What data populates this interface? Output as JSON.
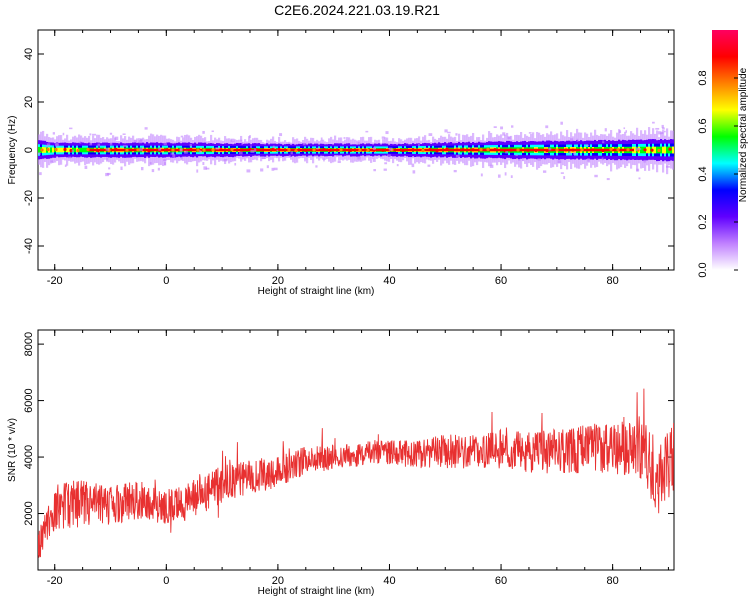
{
  "title": "C2E6.2024.221.03.19.R21",
  "chart_data": [
    {
      "type": "heatmap",
      "xlabel": "Height of straight line (km)",
      "ylabel": "Frequency (Hz)",
      "xlim": [
        -23,
        91
      ],
      "ylim": [
        -50,
        50
      ],
      "x_ticks": [
        -20,
        0,
        20,
        40,
        60,
        80
      ],
      "y_ticks": [
        -40,
        -20,
        0,
        20,
        40
      ],
      "x_tick_labels": [
        "-20",
        "0",
        "20",
        "40",
        "60",
        "80"
      ],
      "y_tick_labels": [
        "-40",
        "-20",
        "0",
        "20",
        "40"
      ],
      "center_frequency": 0,
      "band_halfwidth_hz": [
        [
          -23,
          4
        ],
        [
          -20,
          3
        ],
        [
          0,
          3
        ],
        [
          20,
          2.5
        ],
        [
          40,
          2.5
        ],
        [
          50,
          3
        ],
        [
          60,
          3.5
        ],
        [
          80,
          4
        ],
        [
          91,
          4.5
        ]
      ],
      "grid": false,
      "colorbar": {
        "label": "Normalized spectral amplitude",
        "range": [
          0,
          1
        ],
        "ticks": [
          0.0,
          0.2,
          0.4,
          0.6,
          0.8
        ],
        "tick_labels": [
          "0.0",
          "0.2",
          "0.4",
          "0.6",
          "0.8"
        ],
        "colors": [
          "#ffffff",
          "#c080ff",
          "#6000ff",
          "#0000ff",
          "#00ffff",
          "#00ff00",
          "#ffff00",
          "#ff8000",
          "#ff0000",
          "#ff0060"
        ]
      }
    },
    {
      "type": "line",
      "xlabel": "Height of straight line (km)",
      "ylabel": "SNR (10 * v/v)",
      "xlim": [
        -23,
        91
      ],
      "ylim": [
        0,
        8500
      ],
      "x_ticks": [
        -20,
        0,
        20,
        40,
        60,
        80
      ],
      "y_ticks": [
        2000,
        4000,
        6000,
        8000
      ],
      "x_tick_labels": [
        "-20",
        "0",
        "20",
        "40",
        "60",
        "80"
      ],
      "y_tick_labels": [
        "2000",
        "4000",
        "6000",
        "8000"
      ],
      "grid": false,
      "color": "#e83030",
      "trend": {
        "x": [
          -23,
          -20,
          -15,
          -10,
          -5,
          0,
          5,
          10,
          15,
          20,
          25,
          30,
          35,
          40,
          45,
          50,
          55,
          60,
          65,
          70,
          75,
          80,
          85,
          88,
          91
        ],
        "y": [
          800,
          2200,
          2300,
          2300,
          2500,
          2200,
          2500,
          3000,
          3300,
          3500,
          3900,
          4000,
          4100,
          4200,
          4100,
          4200,
          4200,
          4300,
          4200,
          4200,
          4300,
          4300,
          4300,
          3400,
          4000
        ],
        "spread": [
          500,
          900,
          900,
          700,
          700,
          600,
          700,
          700,
          600,
          600,
          500,
          450,
          450,
          450,
          500,
          600,
          650,
          700,
          750,
          800,
          900,
          900,
          1100,
          1400,
          1300
        ]
      }
    }
  ]
}
